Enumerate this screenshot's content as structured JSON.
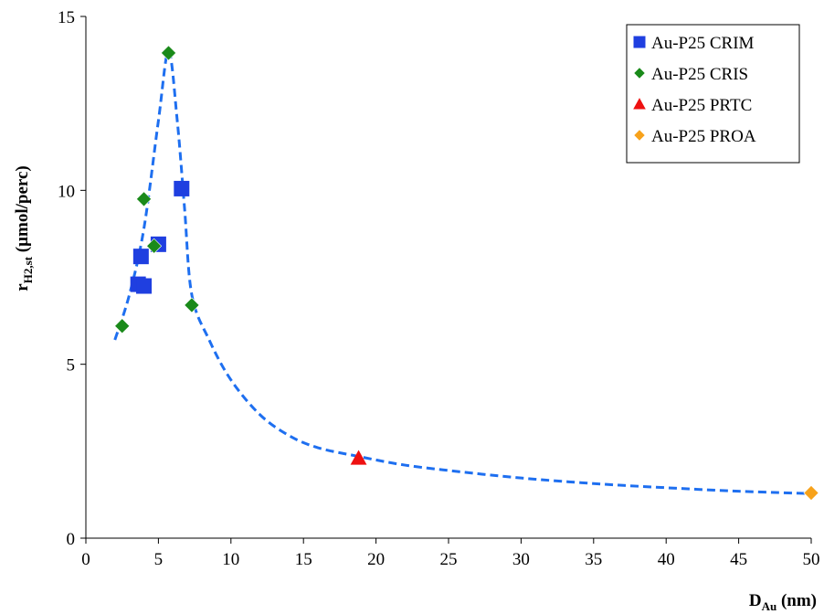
{
  "chart_data": {
    "type": "scatter",
    "xlabel": {
      "main": "D",
      "sub": "Au",
      "suffix": " (nm)"
    },
    "ylabel": {
      "main": "r",
      "sub": "H2,st",
      "suffix": " (µmol/perc)"
    },
    "xlim": [
      0,
      50
    ],
    "ylim": [
      0,
      15
    ],
    "xticks": [
      0,
      5,
      10,
      15,
      20,
      25,
      30,
      35,
      40,
      45,
      50
    ],
    "yticks": [
      0,
      5,
      10,
      15
    ],
    "grid": false,
    "legend_position": "top-right",
    "series": [
      {
        "name": "Au-P25 CRIM",
        "marker": "square",
        "color": "#1f3fe0",
        "points": [
          [
            3.6,
            7.3
          ],
          [
            4.0,
            7.25
          ],
          [
            3.8,
            8.1
          ],
          [
            5.0,
            8.45
          ],
          [
            6.6,
            10.05
          ]
        ]
      },
      {
        "name": "Au-P25 CRIS",
        "marker": "diamond",
        "color": "#1a8a1a",
        "points": [
          [
            2.5,
            6.1
          ],
          [
            4.0,
            9.75
          ],
          [
            4.7,
            8.4
          ],
          [
            5.7,
            13.95
          ],
          [
            7.3,
            6.7
          ]
        ]
      },
      {
        "name": "Au-P25 PRTC",
        "marker": "triangle",
        "color": "#ee1111",
        "points": [
          [
            18.8,
            2.3
          ]
        ]
      },
      {
        "name": "Au-P25 PROA",
        "marker": "diamond",
        "color": "#f7a21b",
        "points": [
          [
            50.0,
            1.3
          ]
        ]
      }
    ],
    "trend_line": {
      "style": "dashed",
      "color": "#1e6ff0",
      "points": [
        [
          2.0,
          5.7
        ],
        [
          3.0,
          7.0
        ],
        [
          4.0,
          8.9
        ],
        [
          5.0,
          12.0
        ],
        [
          5.7,
          14.0
        ],
        [
          6.3,
          12.0
        ],
        [
          6.8,
          9.5
        ],
        [
          7.3,
          7.0
        ],
        [
          8.5,
          5.7
        ],
        [
          10.0,
          4.55
        ],
        [
          12.0,
          3.55
        ],
        [
          14.0,
          2.95
        ],
        [
          16.0,
          2.6
        ],
        [
          18.8,
          2.35
        ],
        [
          22.0,
          2.1
        ],
        [
          26.0,
          1.9
        ],
        [
          30.0,
          1.73
        ],
        [
          35.0,
          1.57
        ],
        [
          40.0,
          1.45
        ],
        [
          45.0,
          1.35
        ],
        [
          50.0,
          1.28
        ]
      ]
    }
  }
}
